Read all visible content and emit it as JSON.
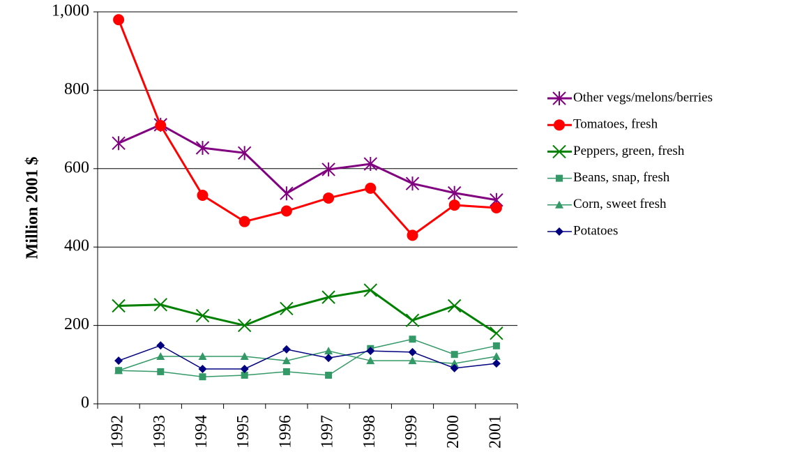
{
  "chart_data": {
    "type": "line",
    "y_label": "Million 2001 $",
    "categories": [
      "1992",
      "1993",
      "1994",
      "1995",
      "1996",
      "1997",
      "1998",
      "1999",
      "2000",
      "2001"
    ],
    "series": [
      {
        "name": "Other vegs/melons/berries",
        "color": "#800080",
        "marker": "star",
        "values": [
          665,
          712,
          653,
          640,
          537,
          598,
          612,
          562,
          538,
          520
        ]
      },
      {
        "name": "Tomatoes, fresh",
        "color": "#ff0000",
        "marker": "circle",
        "values": [
          980,
          710,
          532,
          465,
          492,
          525,
          550,
          430,
          507,
          500
        ]
      },
      {
        "name": "Peppers, green, fresh",
        "color": "#008000",
        "marker": "x",
        "values": [
          250,
          253,
          225,
          200,
          243,
          272,
          290,
          213,
          250,
          180
        ]
      },
      {
        "name": "Beans, snap, fresh",
        "color": "#339966",
        "marker": "square",
        "values": [
          85,
          82,
          69,
          73,
          82,
          73,
          141,
          165,
          126,
          148
        ]
      },
      {
        "name": "Corn, sweet fresh",
        "color": "#339966",
        "marker": "triangle",
        "values": [
          85,
          121,
          121,
          121,
          110,
          135,
          110,
          110,
          103,
          121
        ]
      },
      {
        "name": "Potatoes",
        "color": "#000080",
        "marker": "diamond",
        "values": [
          110,
          149,
          89,
          89,
          139,
          117,
          135,
          132,
          91,
          103
        ]
      }
    ],
    "ylim": [
      0,
      1000
    ],
    "yticks": [
      0,
      200,
      400,
      600,
      800,
      {
        "value": 1000,
        "label": "1,000"
      }
    ],
    "grid": true
  }
}
